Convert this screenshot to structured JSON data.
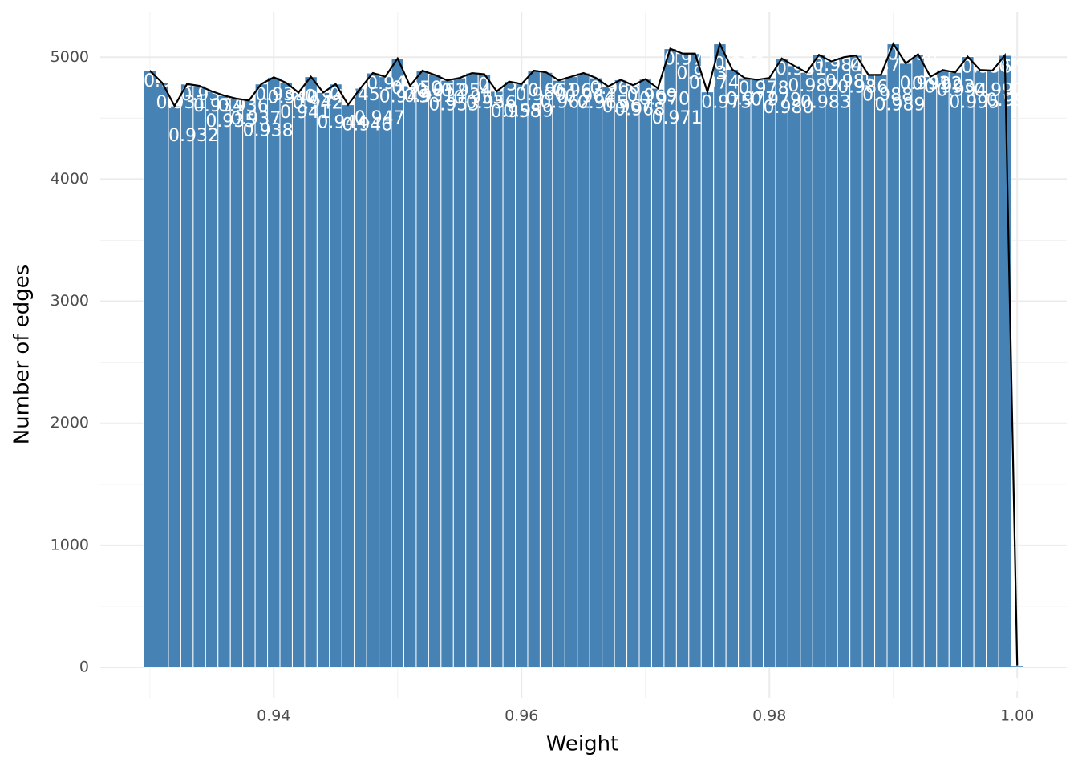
{
  "chart_data": {
    "type": "histogram",
    "x_label": "Weight",
    "y_label": "Number of edges",
    "bins": [
      0.9295,
      0.9305,
      0.9315,
      0.9325,
      0.9335,
      0.9345,
      0.9355,
      0.9365,
      0.9375,
      0.9385,
      0.9395,
      0.9405,
      0.9415,
      0.9425,
      0.9435,
      0.9445,
      0.9455,
      0.9465,
      0.9475,
      0.9485,
      0.9495,
      0.9505,
      0.9515,
      0.9525,
      0.9535,
      0.9545,
      0.9555,
      0.9565,
      0.9575,
      0.9585,
      0.9595,
      0.9605,
      0.9615,
      0.9625,
      0.9635,
      0.9645,
      0.9655,
      0.9665,
      0.9675,
      0.9685,
      0.9695,
      0.9705,
      0.9715,
      0.9725,
      0.9735,
      0.9745,
      0.9755,
      0.9765,
      0.9775,
      0.9785,
      0.9795,
      0.9805,
      0.9815,
      0.9825,
      0.9835,
      0.9845,
      0.9855,
      0.9865,
      0.9875,
      0.9885,
      0.9895,
      0.9905,
      0.9915,
      0.9925,
      0.9935,
      0.9945,
      0.9955,
      0.9965,
      0.9975,
      0.9985,
      0.9995,
      1.0005
    ],
    "counts": [
      4890,
      4790,
      4600,
      4780,
      4765,
      4720,
      4685,
      4660,
      4645,
      4780,
      4835,
      4790,
      4710,
      4840,
      4710,
      4780,
      4610,
      4745,
      4870,
      4840,
      4990,
      4765,
      4890,
      4855,
      4810,
      4830,
      4870,
      4860,
      4720,
      4800,
      4780,
      4890,
      4875,
      4810,
      4840,
      4870,
      4830,
      4760,
      4815,
      4770,
      4820,
      4745,
      5070,
      5030,
      5030,
      4715,
      5110,
      4900,
      4830,
      4815,
      4830,
      4990,
      4930,
      4875,
      5020,
      4965,
      5000,
      5015,
      4855,
      4855,
      5110,
      4950,
      5025,
      4840,
      4895,
      4875,
      5005,
      4895,
      4890,
      5015,
      15
    ],
    "bar_labels": [
      "0.930",
      "0.931",
      "0.932",
      "0.933",
      "0.934",
      "0.935",
      "0.936",
      "0.937",
      "0.938",
      "0.939",
      "0.940",
      "0.941",
      "0.942",
      "0.943",
      "0.944",
      "0.945",
      "0.946",
      "0.947",
      "0.948",
      "0.949",
      "0.950",
      "0.951",
      "0.952",
      "0.953",
      "0.954",
      "0.955",
      "0.956",
      "0.957",
      "0.958",
      "0.959",
      "0.960",
      "0.961",
      "0.962",
      "0.963",
      "0.964",
      "0.965",
      "0.966",
      "0.967",
      "0.968",
      "0.969",
      "0.970",
      "0.971",
      "0.972",
      "0.973",
      "0.974",
      "0.975",
      "0.976",
      "0.977",
      "0.978",
      "0.979",
      "0.980",
      "0.981",
      "0.982",
      "0.983",
      "0.984",
      "0.985",
      "0.986",
      "0.987",
      "0.988",
      "0.989",
      "0.990",
      "0.991",
      "0.992",
      "0.993",
      "0.994",
      "0.995",
      "0.996",
      "0.997",
      "0.998",
      "0.999",
      "1.000"
    ],
    "color": "#4682b4",
    "line_color": "#000000",
    "xlim": [
      0.926,
      1.004
    ],
    "ylim": [
      -250,
      5370
    ],
    "xticks": [
      0.94,
      0.96,
      0.98,
      {
        "value": 1.0,
        "label": "1.00"
      }
    ],
    "yticks": [
      0,
      1000,
      2000,
      3000,
      4000,
      5000
    ],
    "x_minor_ticks": [
      0.93,
      0.95,
      0.97,
      0.99
    ],
    "y_minor_ticks": [
      500,
      1500,
      2500,
      3500,
      4500
    ],
    "grid": true
  }
}
